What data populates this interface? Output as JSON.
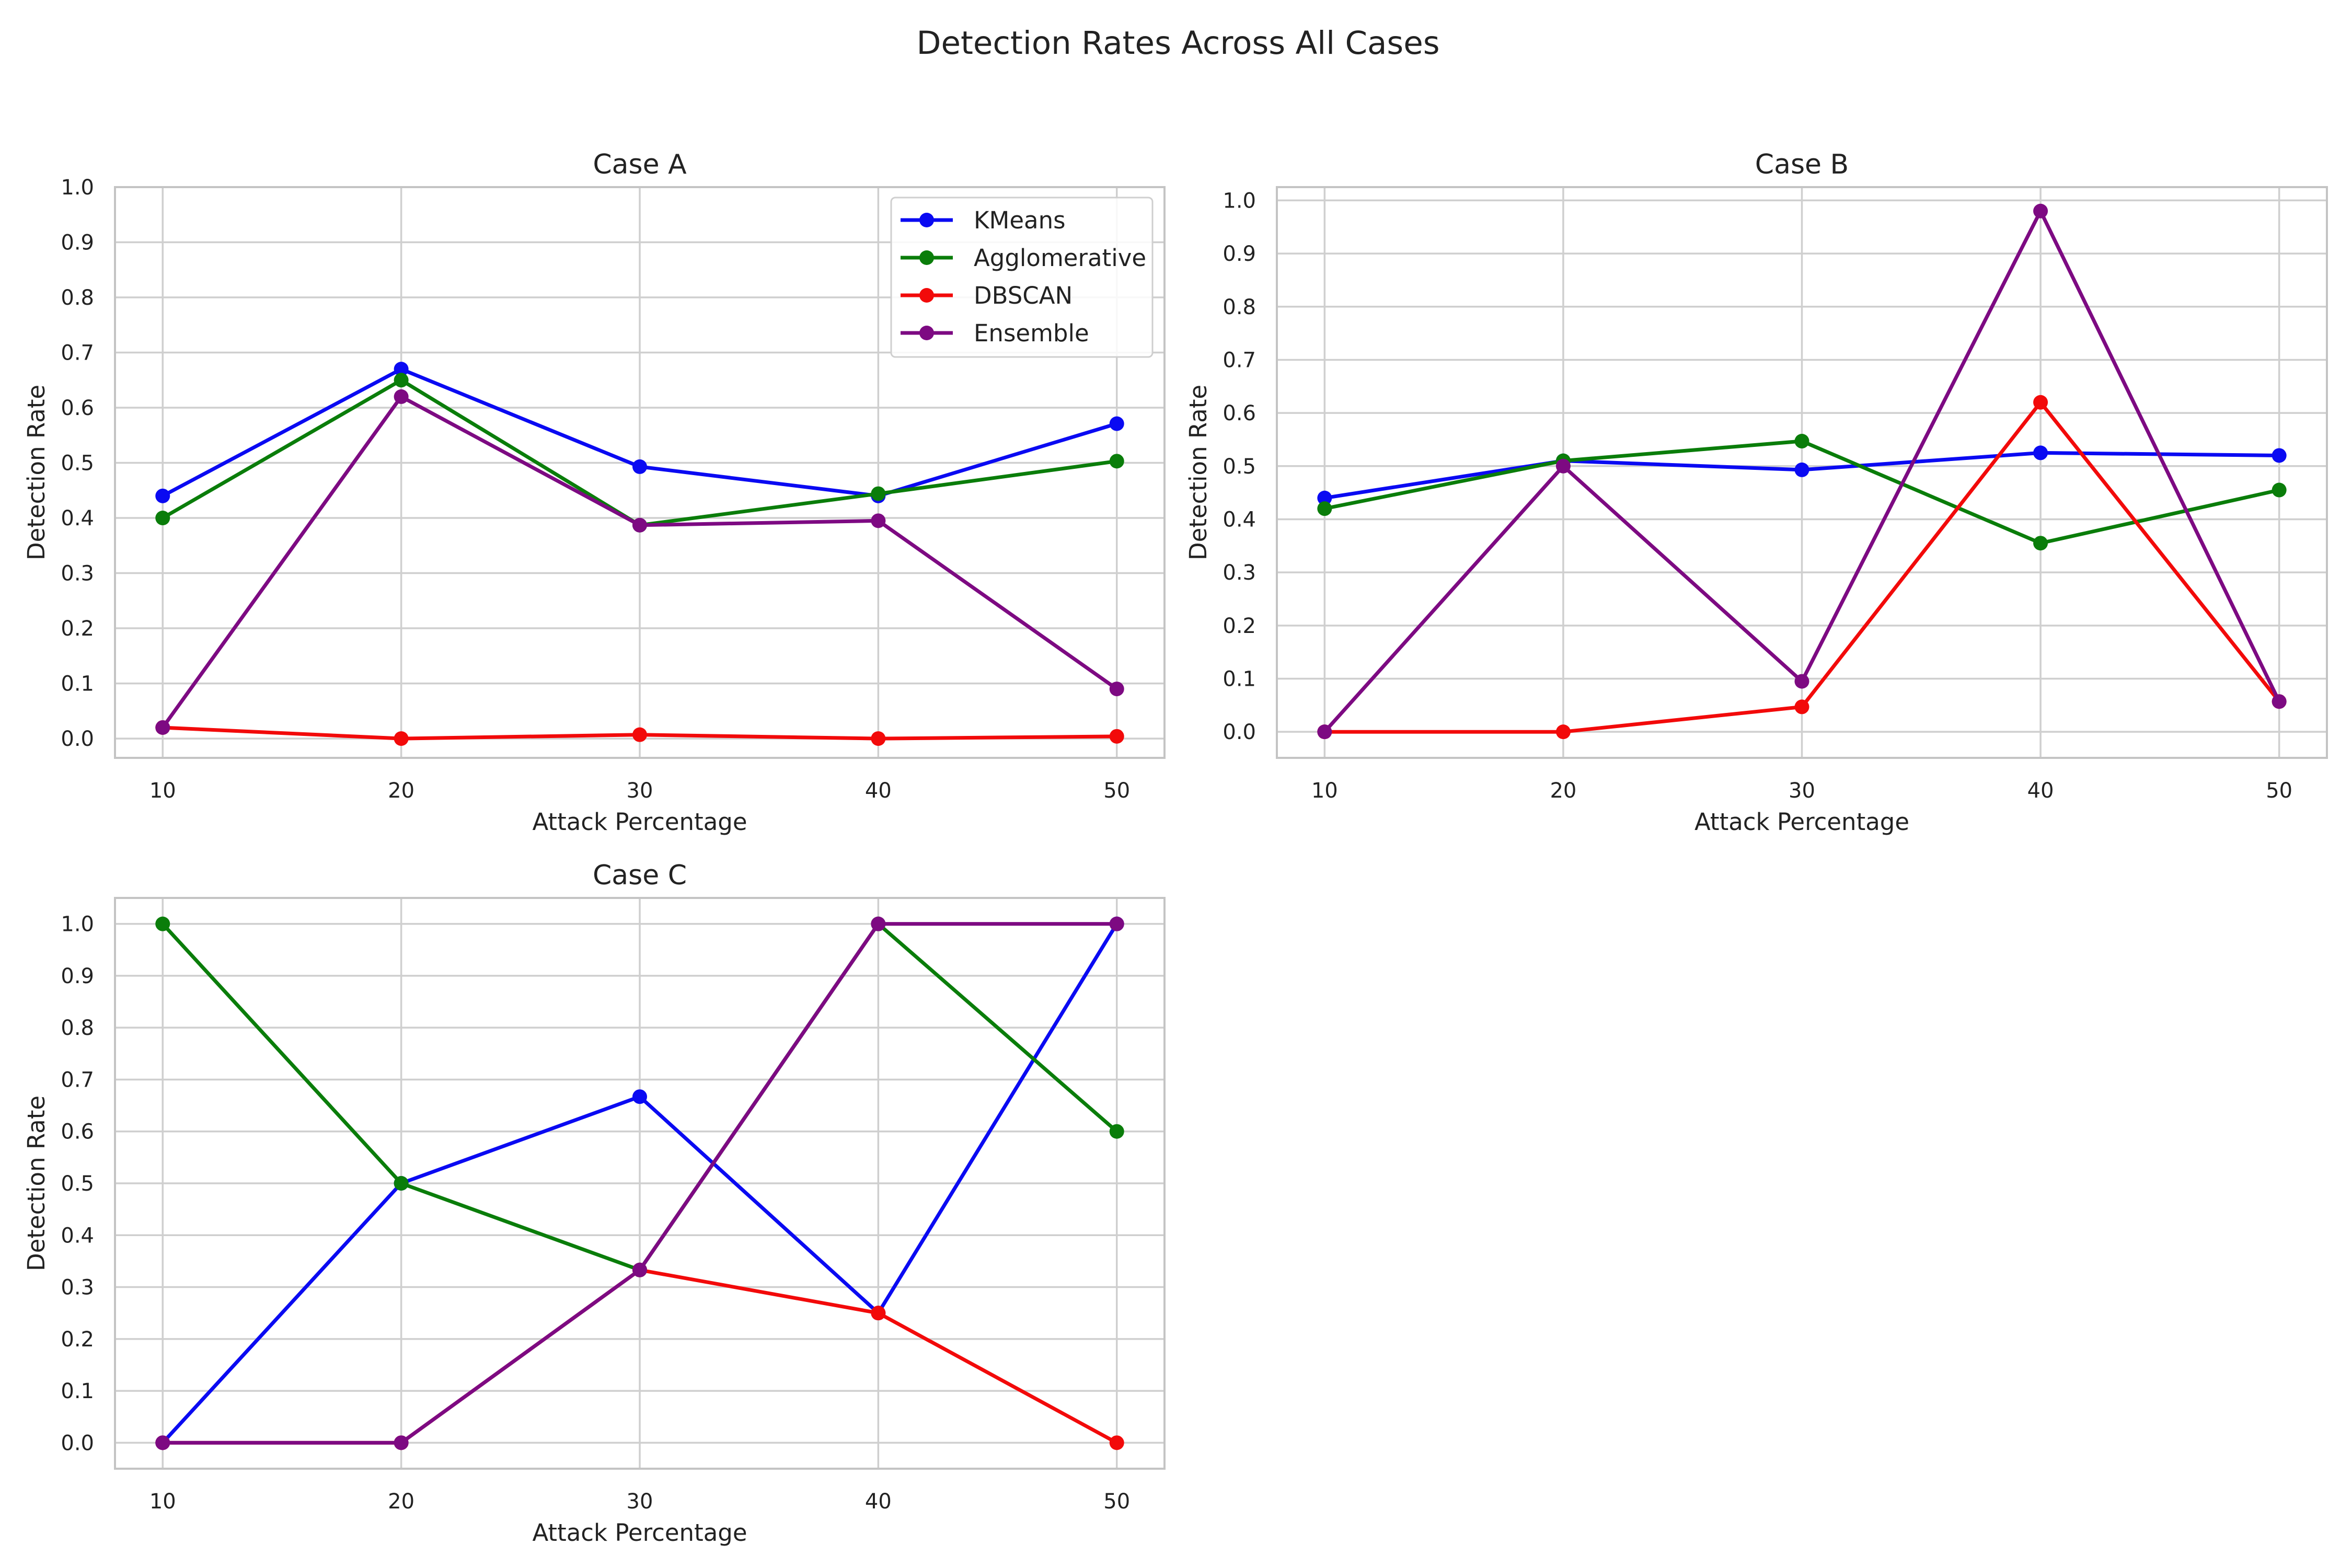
{
  "figure": {
    "title": "Detection Rates Across All Cases"
  },
  "colors": {
    "KMeans": "#0a0af2",
    "Agglomerative": "#0a7d0a",
    "DBSCAN": "#f20a0a",
    "Ensemble": "#7d0a82"
  },
  "chart_data": [
    {
      "type": "line",
      "title": "Case A",
      "xlabel": "Attack Percentage",
      "ylabel": "Detection Rate",
      "x": [
        10,
        20,
        30,
        40,
        50
      ],
      "xticks": [
        "10",
        "20",
        "30",
        "40",
        "50"
      ],
      "yticks": [
        "0.0",
        "0.1",
        "0.2",
        "0.3",
        "0.4",
        "0.5",
        "0.6",
        "0.7",
        "0.8",
        "0.9",
        "1.0"
      ],
      "xlim": [
        8,
        52
      ],
      "ylim": [
        -0.035,
        1.0
      ],
      "grid": true,
      "legend": "top-right",
      "series": [
        {
          "name": "KMeans",
          "values": [
            0.44,
            0.67,
            0.493,
            0.44,
            0.571
          ]
        },
        {
          "name": "Agglomerative",
          "values": [
            0.4,
            0.65,
            0.387,
            0.444,
            0.503
          ]
        },
        {
          "name": "DBSCAN",
          "values": [
            0.02,
            0.0,
            0.007,
            0.0,
            0.004
          ]
        },
        {
          "name": "Ensemble",
          "values": [
            0.02,
            0.62,
            0.387,
            0.395,
            0.09
          ]
        }
      ]
    },
    {
      "type": "line",
      "title": "Case B",
      "xlabel": "Attack Percentage",
      "ylabel": "Detection Rate",
      "x": [
        10,
        20,
        30,
        40,
        50
      ],
      "xticks": [
        "10",
        "20",
        "30",
        "40",
        "50"
      ],
      "yticks": [
        "0.0",
        "0.1",
        "0.2",
        "0.3",
        "0.4",
        "0.5",
        "0.6",
        "0.7",
        "0.8",
        "0.9",
        "1.0"
      ],
      "xlim": [
        8,
        52
      ],
      "ylim": [
        -0.049,
        1.025
      ],
      "grid": true,
      "series": [
        {
          "name": "KMeans",
          "values": [
            0.44,
            0.51,
            0.493,
            0.525,
            0.52
          ]
        },
        {
          "name": "Agglomerative",
          "values": [
            0.42,
            0.51,
            0.547,
            0.355,
            0.455
          ]
        },
        {
          "name": "DBSCAN",
          "values": [
            0.0,
            0.0,
            0.047,
            0.62,
            0.057
          ]
        },
        {
          "name": "Ensemble",
          "values": [
            0.0,
            0.5,
            0.095,
            0.98,
            0.057
          ]
        }
      ]
    },
    {
      "type": "line",
      "title": "Case C",
      "xlabel": "Attack Percentage",
      "ylabel": "Detection Rate",
      "x": [
        10,
        20,
        30,
        40,
        50
      ],
      "xticks": [
        "10",
        "20",
        "30",
        "40",
        "50"
      ],
      "yticks": [
        "0.0",
        "0.1",
        "0.2",
        "0.3",
        "0.4",
        "0.5",
        "0.6",
        "0.7",
        "0.8",
        "0.9",
        "1.0"
      ],
      "xlim": [
        8,
        52
      ],
      "ylim": [
        -0.05,
        1.05
      ],
      "grid": true,
      "series": [
        {
          "name": "KMeans",
          "values": [
            0.0,
            0.5,
            0.667,
            0.25,
            1.0
          ]
        },
        {
          "name": "Agglomerative",
          "values": [
            1.0,
            0.5,
            0.333,
            1.0,
            0.6
          ]
        },
        {
          "name": "DBSCAN",
          "values": [
            0.0,
            0.0,
            0.333,
            0.25,
            0.0
          ]
        },
        {
          "name": "Ensemble",
          "values": [
            0.0,
            0.0,
            0.333,
            1.0,
            1.0
          ]
        }
      ]
    }
  ]
}
